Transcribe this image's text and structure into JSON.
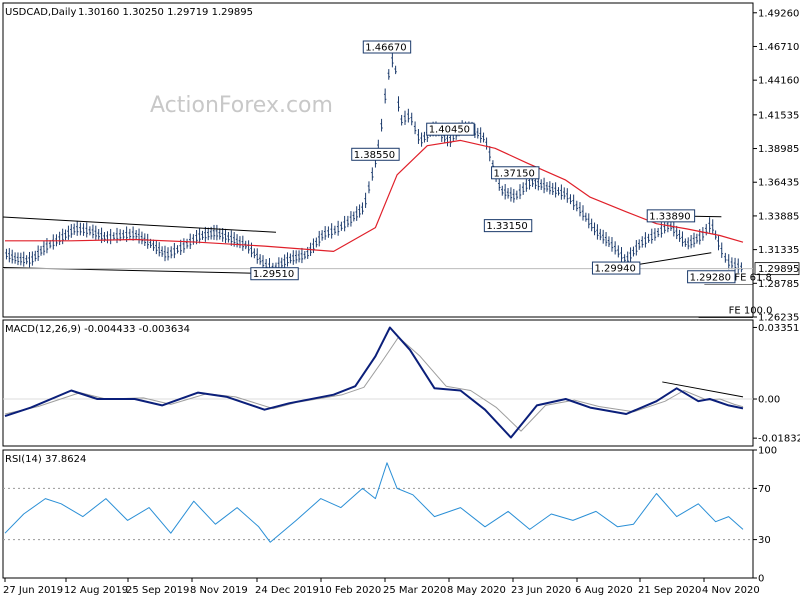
{
  "window": {
    "symbol": "USDCAD,Daily",
    "ohlc": "1.30160 1.30250 1.29719 1.29895",
    "watermark": "ActionForex.com"
  },
  "colors": {
    "background": "#ffffff",
    "candles": "#1b3a6b",
    "ma": "#e0202a",
    "macd": "#0b1f7a",
    "macd_signal": "#9e9e9e",
    "rsi": "#2a8fd6",
    "trendline": "#000000",
    "price_box": "#1b3a6b"
  },
  "chart_data": [
    {
      "type": "line",
      "panel": "price",
      "title": "USDCAD,Daily",
      "subtitle": "1.30160 1.30250 1.29719 1.29895",
      "ylim": [
        1.26235,
        1.5
      ],
      "yticks": [
        {
          "value": 1.4926,
          "label": "1.49260"
        },
        {
          "value": 1.4671,
          "label": "1.46710"
        },
        {
          "value": 1.4416,
          "label": "1.44160"
        },
        {
          "value": 1.41535,
          "label": "1.41535"
        },
        {
          "value": 1.38985,
          "label": "1.38985"
        },
        {
          "value": 1.36435,
          "label": "1.36435"
        },
        {
          "value": 1.33885,
          "label": "1.33885"
        },
        {
          "value": 1.31335,
          "label": "1.31335"
        },
        {
          "value": 1.28785,
          "label": "1.28785"
        },
        {
          "value": 1.26235,
          "label": "1.26235"
        }
      ],
      "last_price": {
        "value": 1.29895,
        "label": "1.29895"
      },
      "x_labels": [
        "27 Jun 2019",
        "12 Aug 2019",
        "25 Sep 2019",
        "8 Nov 2019",
        "24 Dec 2019",
        "10 Feb 2020",
        "25 Mar 2020",
        "8 May 2020",
        "23 Jun 2020",
        "6 Aug 2020",
        "21 Sep 2020",
        "4 Nov 2020"
      ],
      "x_range": [
        "2019-06-27",
        "2020-11-20"
      ],
      "series": [
        {
          "role": "close",
          "x": [
            "2019-06-27",
            "2019-07-05",
            "2019-07-15",
            "2019-07-25",
            "2019-08-05",
            "2019-08-15",
            "2019-08-26",
            "2019-09-05",
            "2019-09-16",
            "2019-09-25",
            "2019-10-07",
            "2019-10-17",
            "2019-10-28",
            "2019-11-08",
            "2019-11-20",
            "2019-12-02",
            "2019-12-12",
            "2019-12-24",
            "2019-12-31",
            "2020-01-10",
            "2020-01-22",
            "2020-02-03",
            "2020-02-12",
            "2020-02-21",
            "2020-03-02",
            "2020-03-09",
            "2020-03-13",
            "2020-03-18",
            "2020-03-23",
            "2020-03-27",
            "2020-04-03",
            "2020-04-10",
            "2020-04-20",
            "2020-04-30",
            "2020-05-08",
            "2020-05-15",
            "2020-05-25",
            "2020-06-05",
            "2020-06-15",
            "2020-06-26",
            "2020-07-08",
            "2020-07-20",
            "2020-07-31",
            "2020-08-10",
            "2020-08-20",
            "2020-08-31",
            "2020-09-10",
            "2020-09-21",
            "2020-09-30",
            "2020-10-12",
            "2020-10-22",
            "2020-10-29",
            "2020-11-04",
            "2020-11-09",
            "2020-11-20"
          ],
          "values": [
            1.31,
            1.306,
            1.305,
            1.315,
            1.322,
            1.329,
            1.327,
            1.322,
            1.324,
            1.325,
            1.317,
            1.309,
            1.315,
            1.323,
            1.326,
            1.321,
            1.316,
            1.302,
            1.299,
            1.306,
            1.309,
            1.325,
            1.328,
            1.335,
            1.345,
            1.375,
            1.396,
            1.44,
            1.462,
            1.41,
            1.415,
            1.395,
            1.405,
            1.395,
            1.405,
            1.405,
            1.397,
            1.358,
            1.353,
            1.365,
            1.36,
            1.355,
            1.342,
            1.327,
            1.318,
            1.305,
            1.318,
            1.325,
            1.332,
            1.317,
            1.323,
            1.333,
            1.315,
            1.304,
            1.299
          ]
        },
        {
          "role": "moving-average",
          "x": [
            "2019-06-27",
            "2019-08-12",
            "2019-09-25",
            "2019-11-08",
            "2019-12-24",
            "2020-02-10",
            "2020-03-10",
            "2020-03-25",
            "2020-04-15",
            "2020-05-08",
            "2020-06-01",
            "2020-06-23",
            "2020-07-20",
            "2020-08-06",
            "2020-08-31",
            "2020-09-21",
            "2020-10-12",
            "2020-11-04",
            "2020-11-20"
          ],
          "values": [
            1.32,
            1.32,
            1.321,
            1.319,
            1.316,
            1.312,
            1.33,
            1.37,
            1.392,
            1.396,
            1.39,
            1.379,
            1.366,
            1.353,
            1.342,
            1.333,
            1.329,
            1.324,
            1.319
          ]
        }
      ],
      "annotations": [
        {
          "label": "1.46670",
          "x": "2020-03-18",
          "value": 1.4667
        },
        {
          "label": "1.38550",
          "x": "2020-03-10",
          "value": 1.3855
        },
        {
          "label": "1.40450",
          "x": "2020-05-01",
          "value": 1.4045
        },
        {
          "label": "1.37150",
          "x": "2020-06-15",
          "value": 1.3715
        },
        {
          "label": "1.33150",
          "x": "2020-06-10",
          "value": 1.3315
        },
        {
          "label": "1.29510",
          "x": "2019-12-31",
          "value": 1.2951
        },
        {
          "label": "1.29940",
          "x": "2020-08-24",
          "value": 1.2994
        },
        {
          "label": "1.33890",
          "x": "2020-10-01",
          "value": 1.3389
        },
        {
          "label": "1.29280",
          "x": "2020-10-29",
          "value": 1.2928
        },
        {
          "label": "FE 61.8",
          "x": "2020-11-14",
          "value": 1.293
        },
        {
          "label": "FE 100.0",
          "x": "2020-11-10",
          "value": 1.268
        }
      ]
    },
    {
      "type": "line",
      "panel": "macd",
      "title": "MACD(12,26,9) -0.004433 -0.003634",
      "ylim": [
        -0.022,
        0.037
      ],
      "yticks": [
        {
          "value": 0.033515,
          "label": "0.033515"
        },
        {
          "value": 0.0,
          "label": "0.00"
        },
        {
          "value": -0.018324,
          "label": "-0.018324"
        }
      ],
      "series": [
        {
          "role": "macd",
          "x": [
            "2019-06-27",
            "2019-07-15",
            "2019-08-12",
            "2019-08-30",
            "2019-09-25",
            "2019-10-14",
            "2019-11-08",
            "2019-11-28",
            "2019-12-24",
            "2020-01-10",
            "2020-02-10",
            "2020-02-25",
            "2020-03-10",
            "2020-03-20",
            "2020-04-03",
            "2020-04-20",
            "2020-05-08",
            "2020-05-25",
            "2020-06-12",
            "2020-06-30",
            "2020-07-20",
            "2020-08-06",
            "2020-08-31",
            "2020-09-21",
            "2020-10-05",
            "2020-10-20",
            "2020-10-28",
            "2020-11-10",
            "2020-11-20"
          ],
          "values": [
            -0.008,
            -0.004,
            0.004,
            0.0,
            0.0,
            -0.003,
            0.003,
            0.001,
            -0.005,
            -0.002,
            0.002,
            0.006,
            0.02,
            0.0335,
            0.023,
            0.005,
            0.004,
            -0.005,
            -0.018,
            -0.003,
            0.0,
            -0.004,
            -0.007,
            -0.001,
            0.005,
            -0.001,
            0.0,
            -0.003,
            -0.0044
          ]
        },
        {
          "role": "signal",
          "x": [
            "2019-06-27",
            "2019-07-20",
            "2019-08-18",
            "2019-09-05",
            "2019-10-01",
            "2019-10-20",
            "2019-11-14",
            "2019-12-04",
            "2019-12-30",
            "2020-01-16",
            "2020-02-16",
            "2020-03-02",
            "2020-03-15",
            "2020-03-26",
            "2020-04-10",
            "2020-04-28",
            "2020-05-15",
            "2020-06-02",
            "2020-06-19",
            "2020-07-06",
            "2020-07-26",
            "2020-08-12",
            "2020-09-05",
            "2020-09-27",
            "2020-10-10",
            "2020-10-26",
            "2020-11-04",
            "2020-11-14",
            "2020-11-20"
          ],
          "values": [
            -0.007,
            -0.0035,
            0.003,
            0.0,
            0.0005,
            -0.0025,
            0.0025,
            0.001,
            -0.0045,
            -0.0015,
            0.002,
            0.0055,
            0.018,
            0.029,
            0.02,
            0.006,
            0.004,
            -0.004,
            -0.015,
            -0.003,
            -0.0005,
            -0.0035,
            -0.006,
            -0.001,
            0.004,
            -0.0005,
            0.0,
            -0.0025,
            -0.0036
          ]
        }
      ]
    },
    {
      "type": "line",
      "panel": "rsi",
      "title": "RSI(14) 37.8624",
      "ylim": [
        0,
        100
      ],
      "yticks": [
        {
          "value": 100,
          "label": "100"
        },
        {
          "value": 70,
          "label": "70"
        },
        {
          "value": 30,
          "label": "30"
        },
        {
          "value": 0,
          "label": "0"
        }
      ],
      "grid": "dotted at 30 and 70",
      "series": [
        {
          "role": "rsi",
          "x": [
            "2019-06-27",
            "2019-07-10",
            "2019-07-25",
            "2019-08-05",
            "2019-08-20",
            "2019-09-05",
            "2019-09-20",
            "2019-10-05",
            "2019-10-20",
            "2019-11-05",
            "2019-11-20",
            "2019-12-05",
            "2019-12-20",
            "2019-12-28",
            "2020-01-15",
            "2020-02-01",
            "2020-02-15",
            "2020-03-01",
            "2020-03-10",
            "2020-03-18",
            "2020-03-25",
            "2020-04-05",
            "2020-04-20",
            "2020-05-08",
            "2020-05-25",
            "2020-06-10",
            "2020-06-25",
            "2020-07-10",
            "2020-07-25",
            "2020-08-10",
            "2020-08-25",
            "2020-09-05",
            "2020-09-21",
            "2020-10-05",
            "2020-10-20",
            "2020-11-01",
            "2020-11-10",
            "2020-11-20"
          ],
          "values": [
            35,
            50,
            62,
            58,
            48,
            62,
            45,
            55,
            35,
            60,
            42,
            55,
            40,
            28,
            45,
            62,
            55,
            70,
            62,
            90,
            70,
            65,
            48,
            55,
            40,
            52,
            38,
            50,
            45,
            52,
            40,
            42,
            66,
            48,
            58,
            44,
            48,
            38
          ]
        }
      ]
    }
  ]
}
